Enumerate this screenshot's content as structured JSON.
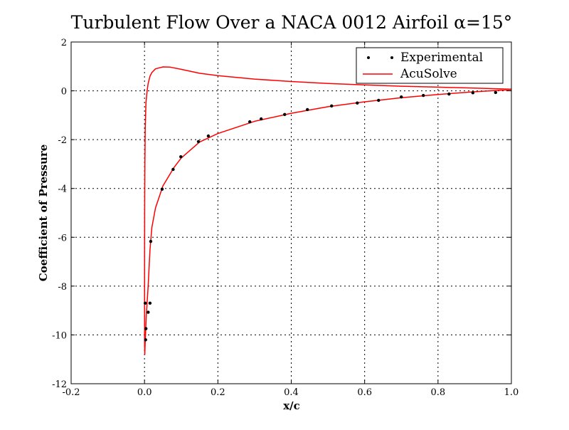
{
  "chart_data": {
    "type": "line",
    "title": "Turbulent Flow Over a NACA 0012 Airfoil α=15°",
    "xlabel": "x/c",
    "ylabel": "Coefficient of Pressure",
    "xlim": [
      -0.2,
      1.0
    ],
    "ylim": [
      -12,
      2
    ],
    "xticks": [
      -0.2,
      0.0,
      0.2,
      0.4,
      0.6,
      0.8,
      1.0
    ],
    "xtick_labels": [
      "-0.2",
      "0.0",
      "0.2",
      "0.4",
      "0.6",
      "0.8",
      "1.0"
    ],
    "yticks": [
      -12,
      -10,
      -8,
      -6,
      -4,
      -2,
      0,
      2
    ],
    "ytick_labels": [
      "-12",
      "-10",
      "-8",
      "-6",
      "-4",
      "-2",
      "0",
      "2"
    ],
    "grid": true,
    "legend_position": "top-right",
    "series": [
      {
        "name": "Experimental",
        "style": "scatter",
        "color": "#000000",
        "x": [
          0.002,
          0.003,
          0.004,
          0.01,
          0.015,
          0.017,
          0.048,
          0.078,
          0.099,
          0.147,
          0.174,
          0.287,
          0.318,
          0.382,
          0.444,
          0.51,
          0.58,
          0.638,
          0.7,
          0.76,
          0.83,
          0.895,
          0.957
        ],
        "y": [
          -8.7,
          -10.2,
          -9.74,
          -9.07,
          -8.7,
          -6.17,
          -4.03,
          -3.22,
          -2.7,
          -2.08,
          -1.85,
          -1.27,
          -1.15,
          -0.97,
          -0.77,
          -0.62,
          -0.5,
          -0.39,
          -0.25,
          -0.19,
          -0.13,
          -0.08,
          -0.07
        ]
      },
      {
        "name": "AcuSolve",
        "style": "line",
        "color": "#ff0000",
        "x": [
          1.0,
          0.9,
          0.8,
          0.7,
          0.6,
          0.5,
          0.4,
          0.3,
          0.2,
          0.15,
          0.1,
          0.08,
          0.05,
          0.03,
          0.02,
          0.015,
          0.01,
          0.005,
          0.003,
          0.0015,
          0.0008,
          0.0003,
          0.0002,
          0.0005,
          0.001,
          0.002,
          0.004,
          0.007,
          0.01,
          0.015,
          0.02,
          0.03,
          0.05,
          0.07,
          0.1,
          0.15,
          0.2,
          0.3,
          0.4,
          0.5,
          0.6,
          0.7,
          0.8,
          0.9,
          1.0
        ],
        "y": [
          0.05,
          -0.04,
          -0.15,
          -0.28,
          -0.45,
          -0.65,
          -0.92,
          -1.25,
          -1.75,
          -2.1,
          -2.75,
          -3.15,
          -3.9,
          -4.8,
          -5.6,
          -6.5,
          -8.0,
          -9.2,
          -9.9,
          -10.5,
          -10.8,
          -10.3,
          -8.0,
          -5.0,
          -3.0,
          -1.5,
          -0.5,
          0.0,
          0.3,
          0.6,
          0.75,
          0.9,
          0.98,
          0.97,
          0.88,
          0.72,
          0.62,
          0.48,
          0.38,
          0.3,
          0.24,
          0.19,
          0.15,
          0.11,
          0.07
        ]
      }
    ]
  }
}
